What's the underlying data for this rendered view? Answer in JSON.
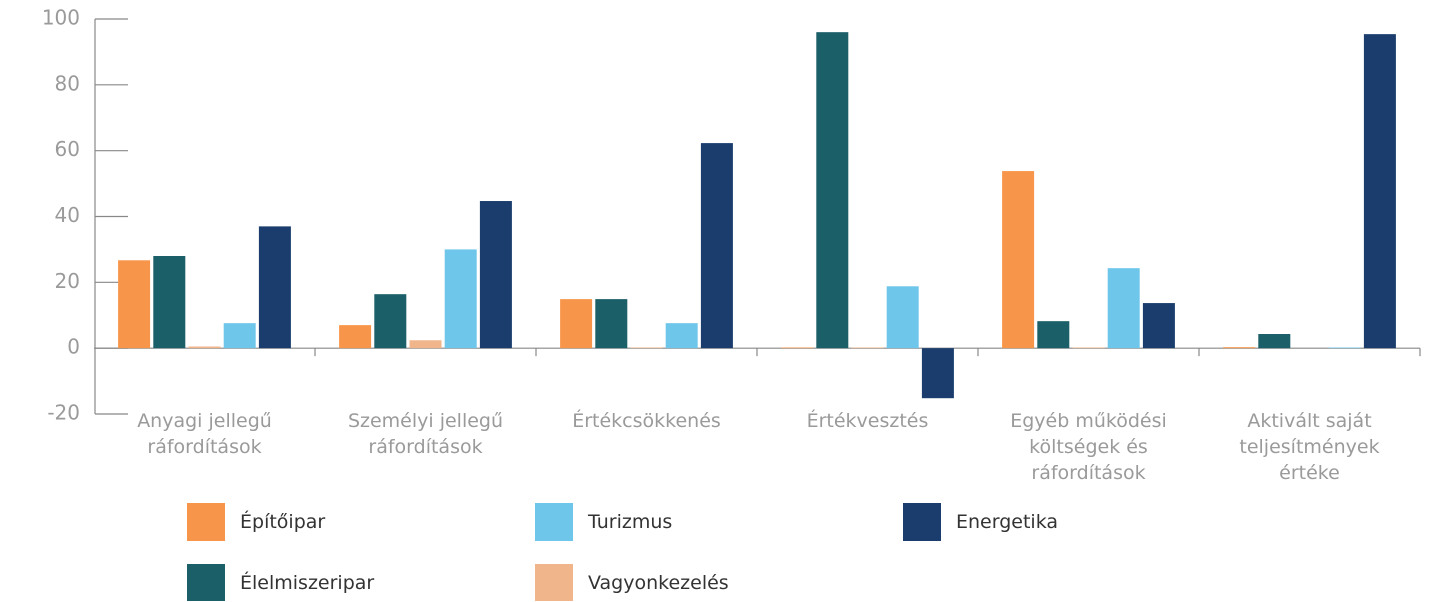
{
  "chart_data": {
    "type": "bar",
    "categories": [
      "Anyagi jellegű\nráfordítások",
      "Személyi jellegű\nráfordítások",
      "Értékcsökkenés",
      "Értékvesztés",
      "Egyéb működési\nköltségek és\nráfordítások",
      "Aktivált saját\nteljesítmények\nértéke"
    ],
    "series": [
      {
        "name": "Építőipar",
        "color": "#f7964a",
        "values": [
          26.7,
          7,
          14.9,
          0.2,
          53.8,
          0.3
        ]
      },
      {
        "name": "Élelmiszeripar",
        "color": "#1b5f68",
        "values": [
          28,
          16.4,
          14.9,
          96,
          8.2,
          4.3
        ]
      },
      {
        "name": "Vagyonkezelés",
        "color": "#f0b58a",
        "values": [
          0.5,
          2.4,
          0.2,
          0.2,
          0.2,
          0
        ]
      },
      {
        "name": "Turizmus",
        "color": "#6fc6eb",
        "values": [
          7.6,
          30,
          7.6,
          18.8,
          24.3,
          0.2
        ]
      },
      {
        "name": "Energetika",
        "color": "#1a3d6e",
        "values": [
          37,
          44.7,
          62.3,
          -15.2,
          13.7,
          95.4
        ]
      }
    ],
    "ylim": [
      -20,
      100
    ],
    "yticks": [
      -20,
      0,
      20,
      40,
      60,
      80,
      100
    ]
  }
}
